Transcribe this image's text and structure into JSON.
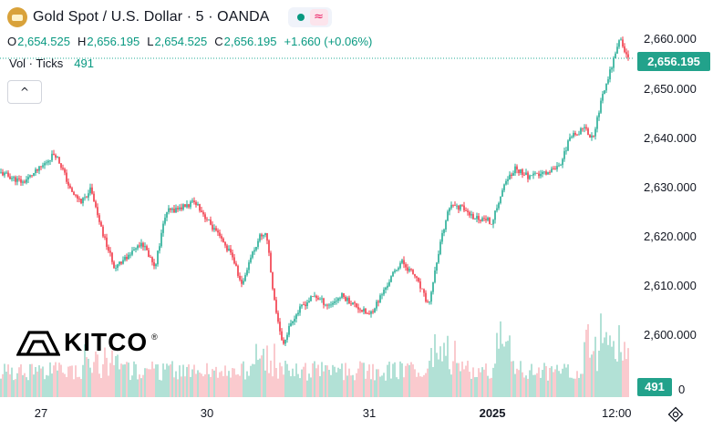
{
  "header": {
    "title": "Gold Spot / U.S. Dollar · 5 · OANDA",
    "ohlc": [
      {
        "key": "O",
        "value": "2,654.525"
      },
      {
        "key": "H",
        "value": "2,656.195"
      },
      {
        "key": "L",
        "value": "2,654.525"
      },
      {
        "key": "C",
        "value": "2,656.195"
      }
    ],
    "change": "+1.660 (+0.06%)",
    "volume_label": "Vol · Ticks",
    "volume_value": "491",
    "collapse_glyph": "^"
  },
  "logo": {
    "text": "KITCO",
    "mark": "®"
  },
  "badges": {
    "last_price": "2,656.195",
    "last_volume": "491"
  },
  "colors": {
    "up": "#22ab94",
    "down": "#f23645",
    "up_vol": "#7fcdbb",
    "down_vol": "#f7a6ad",
    "badge": "#22a28b",
    "pulse": "#089981"
  },
  "icons": {
    "symbol": "gold-bar-icon",
    "status": "market-open-dot-icon",
    "wave": "approx-wave-icon",
    "settings": "gear-icon"
  },
  "chart_data": {
    "type": "candlestick",
    "title": "Gold Spot / U.S. Dollar · 5 · OANDA",
    "y_ticks": [
      "2,600.000",
      "2,610.000",
      "2,620.000",
      "2,630.000",
      "2,640.000",
      "2,650.000",
      "2,660.000"
    ],
    "x_ticks": [
      "27",
      "30",
      "31",
      "2025",
      "12:00"
    ],
    "ylim": [
      2595,
      2661
    ],
    "grid": false,
    "price_path": [
      [
        0,
        2633
      ],
      [
        25,
        2631
      ],
      [
        45,
        2634
      ],
      [
        60,
        2637
      ],
      [
        68,
        2634
      ],
      [
        78,
        2629
      ],
      [
        90,
        2627
      ],
      [
        100,
        2630
      ],
      [
        110,
        2622
      ],
      [
        125,
        2614
      ],
      [
        140,
        2616
      ],
      [
        155,
        2619
      ],
      [
        170,
        2614
      ],
      [
        182,
        2625
      ],
      [
        200,
        2626
      ],
      [
        215,
        2627
      ],
      [
        225,
        2624
      ],
      [
        240,
        2620
      ],
      [
        255,
        2616
      ],
      [
        265,
        2610
      ],
      [
        275,
        2616
      ],
      [
        285,
        2620
      ],
      [
        292,
        2621
      ],
      [
        300,
        2608
      ],
      [
        310,
        2598
      ],
      [
        320,
        2603
      ],
      [
        332,
        2606
      ],
      [
        345,
        2608
      ],
      [
        360,
        2606
      ],
      [
        375,
        2608
      ],
      [
        390,
        2606
      ],
      [
        405,
        2604
      ],
      [
        418,
        2608
      ],
      [
        430,
        2612
      ],
      [
        440,
        2615
      ],
      [
        455,
        2612
      ],
      [
        470,
        2606
      ],
      [
        480,
        2616
      ],
      [
        492,
        2626
      ],
      [
        505,
        2626
      ],
      [
        520,
        2624
      ],
      [
        540,
        2623
      ],
      [
        552,
        2630
      ],
      [
        565,
        2634
      ],
      [
        580,
        2632
      ],
      [
        600,
        2633
      ],
      [
        615,
        2635
      ],
      [
        625,
        2640
      ],
      [
        640,
        2642
      ],
      [
        650,
        2640
      ],
      [
        660,
        2648
      ],
      [
        668,
        2653
      ],
      [
        675,
        2657
      ],
      [
        680,
        2660
      ],
      [
        686,
        2657
      ],
      [
        690,
        2656
      ]
    ]
  }
}
